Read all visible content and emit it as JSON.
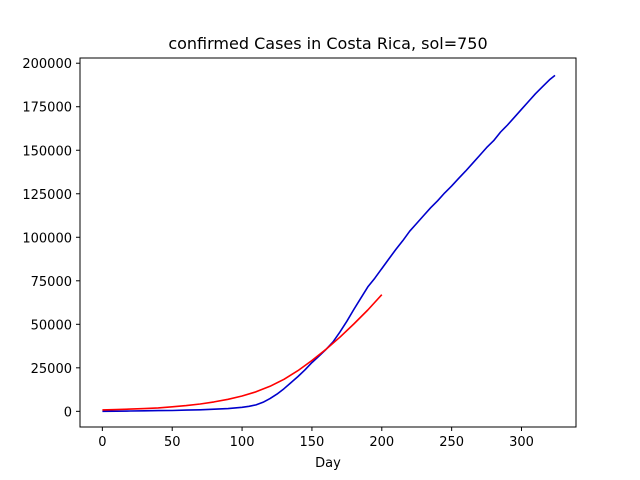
{
  "chart_data": {
    "type": "line",
    "title": "confirmed Cases in Costa Rica, sol=750",
    "xlabel": "Day",
    "ylabel": "",
    "xlim": [
      -16,
      339
    ],
    "ylim": [
      -9000,
      203000
    ],
    "xticks": [
      0,
      50,
      100,
      150,
      200,
      250,
      300
    ],
    "yticks": [
      0,
      25000,
      50000,
      75000,
      100000,
      125000,
      150000,
      175000,
      200000
    ],
    "grid": false,
    "series": [
      {
        "color": "#0000cc",
        "x": [
          0,
          10,
          20,
          30,
          40,
          50,
          60,
          70,
          80,
          90,
          100,
          105,
          110,
          115,
          120,
          125,
          130,
          135,
          140,
          145,
          150,
          155,
          160,
          165,
          170,
          175,
          180,
          185,
          190,
          195,
          200,
          205,
          210,
          215,
          220,
          225,
          230,
          235,
          240,
          245,
          250,
          255,
          260,
          265,
          270,
          275,
          280,
          285,
          290,
          295,
          300,
          305,
          310,
          315,
          320,
          324
        ],
        "y": [
          0,
          100,
          200,
          300,
          400,
          500,
          700,
          900,
          1200,
          1600,
          2300,
          2900,
          3700,
          5200,
          7300,
          9900,
          13000,
          16500,
          20000,
          23800,
          28000,
          31700,
          35500,
          39800,
          45500,
          51800,
          58500,
          65000,
          71500,
          76500,
          82000,
          87500,
          93000,
          98000,
          103500,
          108000,
          112500,
          117000,
          121000,
          125500,
          129500,
          133800,
          138000,
          142500,
          147000,
          151500,
          155500,
          160500,
          164500,
          169000,
          173500,
          178000,
          182500,
          186500,
          190500,
          193000
        ]
      },
      {
        "color": "#ff0000",
        "x": [
          0,
          10,
          20,
          30,
          40,
          50,
          60,
          70,
          80,
          90,
          100,
          110,
          120,
          130,
          140,
          150,
          160,
          170,
          180,
          190,
          200
        ],
        "y": [
          800,
          1000,
          1300,
          1600,
          2000,
          2600,
          3300,
          4200,
          5400,
          6900,
          8800,
          11200,
          14400,
          18400,
          23400,
          29200,
          35600,
          42600,
          50200,
          58200,
          67000
        ]
      }
    ]
  }
}
